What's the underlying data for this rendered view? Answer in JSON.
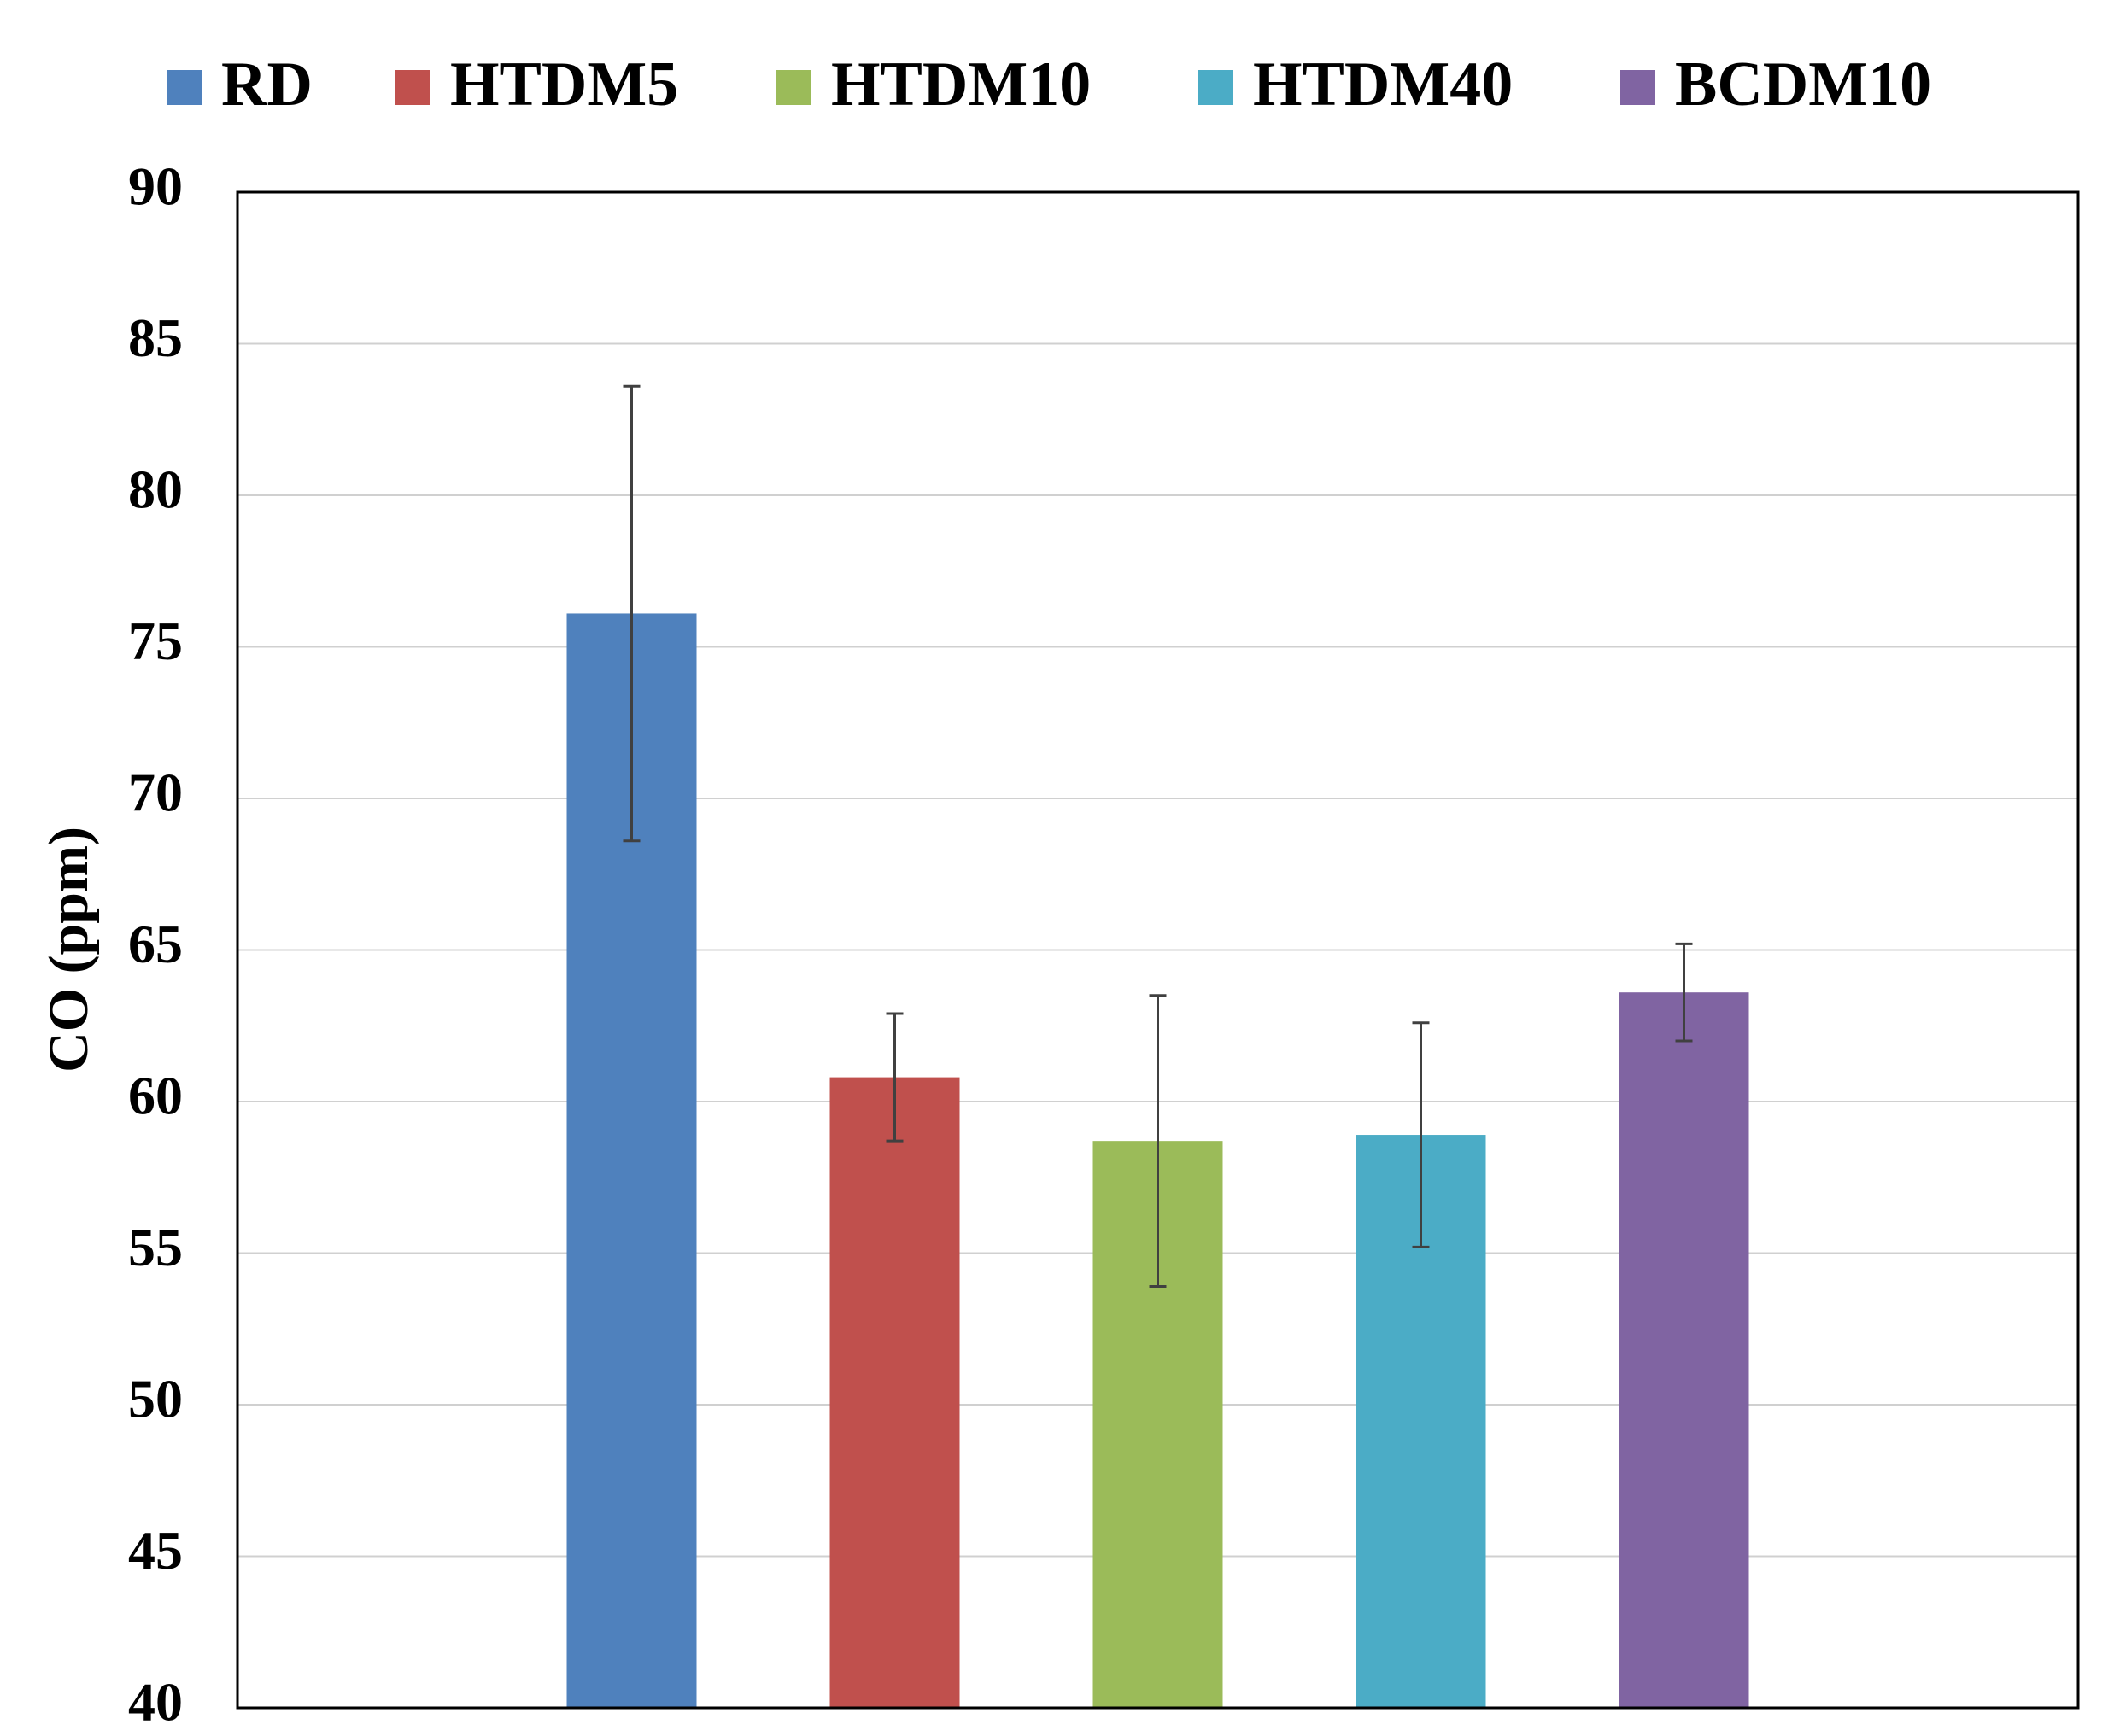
{
  "chart_data": {
    "type": "bar",
    "y_label": "CO (ppm)",
    "categories": [
      null
    ],
    "series": [
      {
        "name": "RD",
        "color": "#4f81bd",
        "values": [
          76.1
        ],
        "errors": [
          7.5
        ]
      },
      {
        "name": "HTDM5",
        "color": "#c0504d",
        "values": [
          60.8
        ],
        "errors": [
          2.1
        ]
      },
      {
        "name": "HTDM10",
        "color": "#9bbb59",
        "values": [
          58.7
        ],
        "errors": [
          4.8
        ]
      },
      {
        "name": "HTDM40",
        "color": "#4bacc6",
        "values": [
          58.9
        ],
        "errors": [
          3.7
        ]
      },
      {
        "name": "BCDM10",
        "color": "#8064a2",
        "values": [
          63.6
        ],
        "errors": [
          1.6
        ]
      }
    ],
    "ylim": [
      40,
      90
    ],
    "yticks": [
      40,
      45,
      50,
      55,
      60,
      65,
      70,
      75,
      80,
      85,
      90
    ],
    "grid": true,
    "legend": "top"
  }
}
